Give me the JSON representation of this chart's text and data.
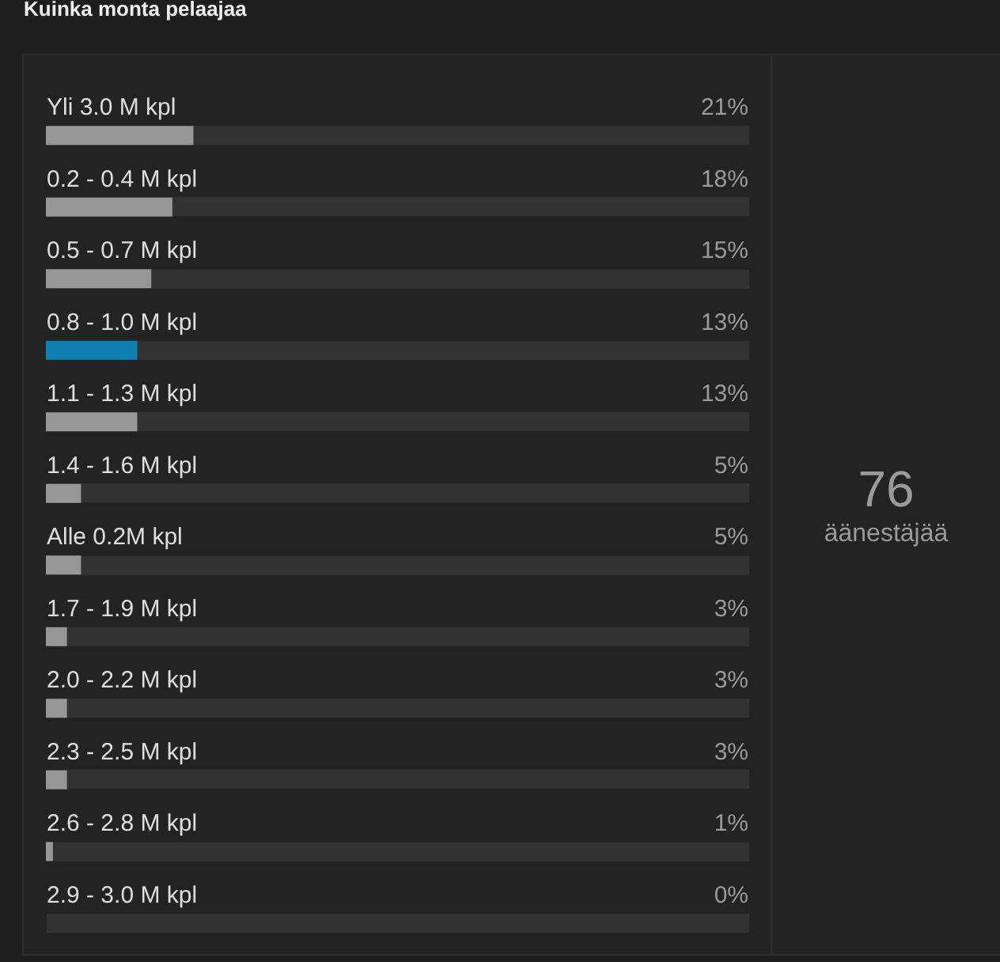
{
  "chart_data": {
    "type": "bar",
    "orientation": "horizontal",
    "title": "Kuinka monta pelaajaa",
    "categories": [
      "Yli 3.0 M kpl",
      "0.2 - 0.4 M kpl",
      "0.5 - 0.7 M kpl",
      "0.8 - 1.0 M kpl",
      "1.1 - 1.3 M kpl",
      "1.4 - 1.6 M kpl",
      "Alle 0.2M kpl",
      "1.7 - 1.9 M kpl",
      "2.0 - 2.2 M kpl",
      "2.3 - 2.5 M kpl",
      "2.6 - 2.8 M kpl",
      "2.9 - 3.0 M kpl"
    ],
    "values": [
      21,
      18,
      15,
      13,
      13,
      5,
      5,
      3,
      3,
      3,
      1,
      0
    ],
    "colors": [
      "#979797",
      "#979797",
      "#979797",
      "#0e7fb3",
      "#979797",
      "#979797",
      "#979797",
      "#979797",
      "#979797",
      "#979797",
      "#979797",
      "#979797"
    ],
    "value_labels": [
      "21%",
      "18%",
      "15%",
      "13%",
      "13%",
      "5%",
      "5%",
      "3%",
      "3%",
      "3%",
      "1%",
      "0%"
    ],
    "xlim": [
      0,
      100
    ],
    "tick_labels": "y",
    "grid": "y",
    "annotations": [
      "76",
      "äänestäjää"
    ]
  }
}
